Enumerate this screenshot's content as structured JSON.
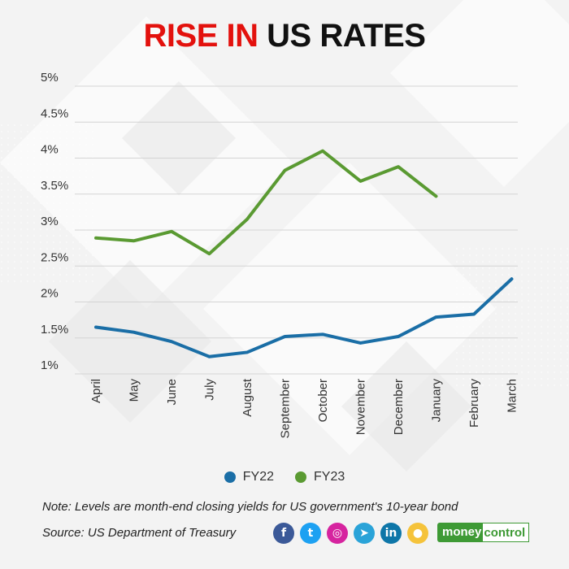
{
  "title": {
    "part1": "RISE IN",
    "part2": "US RATES"
  },
  "chart_data": {
    "type": "line",
    "categories": [
      "April",
      "May",
      "June",
      "July",
      "August",
      "September",
      "October",
      "November",
      "December",
      "January",
      "February",
      "March"
    ],
    "yticks": [
      "1%",
      "1.5%",
      "2%",
      "2.5%",
      "3%",
      "3.5%",
      "4%",
      "4.5%",
      "5%"
    ],
    "ylim": [
      1,
      5
    ],
    "grid": true,
    "legend_position": "bottom",
    "series": [
      {
        "name": "FY22",
        "color": "#1a6ea6",
        "values": [
          1.65,
          1.58,
          1.45,
          1.24,
          1.3,
          1.52,
          1.55,
          1.43,
          1.52,
          1.79,
          1.83,
          2.32
        ]
      },
      {
        "name": "FY23",
        "color": "#5a9a32",
        "values": [
          2.89,
          2.85,
          2.98,
          2.67,
          3.15,
          3.83,
          4.1,
          3.68,
          3.88,
          3.47,
          null,
          null
        ]
      }
    ]
  },
  "legend": [
    {
      "label": "FY22",
      "color": "#1a6ea6"
    },
    {
      "label": "FY23",
      "color": "#5a9a32"
    }
  ],
  "note": "Note: Levels are month-end closing yields for US government's 10-year bond",
  "source": "Source: US Department of Treasury",
  "social": [
    {
      "icon": "facebook-icon",
      "glyph": "f",
      "color": "#3b5998"
    },
    {
      "icon": "twitter-icon",
      "glyph": "t",
      "color": "#1da1f2"
    },
    {
      "icon": "instagram-icon",
      "glyph": "◎",
      "color": "#d6249f"
    },
    {
      "icon": "telegram-icon",
      "glyph": "➤",
      "color": "#2aa3d8"
    },
    {
      "icon": "linkedin-icon",
      "glyph": "in",
      "color": "#0e76a8"
    },
    {
      "icon": "koo-icon",
      "glyph": "●",
      "color": "#f5c33b"
    }
  ],
  "logo": {
    "part1": "money",
    "part2": "control"
  }
}
